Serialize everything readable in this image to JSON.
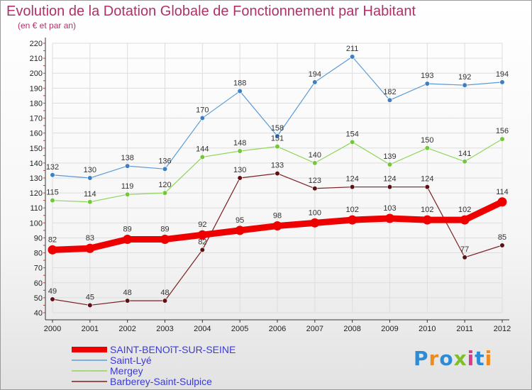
{
  "title": "Evolution de la Dotation Globale de Fonctionnement par Habitant",
  "subtitle": "(en € et par an)",
  "logo": {
    "text": "Proxiti",
    "colors": [
      "#2e8bd6",
      "#ef8a1c",
      "#2e8bd6",
      "#7cbf2a",
      "#d93a8c",
      "#2e8bd6",
      "#ef8a1c"
    ]
  },
  "chart_data": {
    "type": "line",
    "x": [
      "2000",
      "2001",
      "2002",
      "2003",
      "2004",
      "2005",
      "2006",
      "2007",
      "2008",
      "2009",
      "2010",
      "2011",
      "2012"
    ],
    "ylim": [
      40,
      220
    ],
    "yticks": [
      40,
      50,
      60,
      70,
      80,
      90,
      100,
      110,
      120,
      130,
      140,
      150,
      160,
      170,
      180,
      190,
      200,
      210,
      220
    ],
    "grid": true,
    "legend_position": "bottom-left",
    "series": [
      {
        "name": "SAINT-BENOîT-SUR-SEINE",
        "color": "#ee0000",
        "markerColor": "#ee0000",
        "width": 9,
        "values": [
          82,
          83,
          89,
          89,
          92,
          95,
          98,
          100,
          102,
          103,
          102,
          102,
          114
        ]
      },
      {
        "name": "Saint-Lyé",
        "color": "#5b9bd5",
        "markerColor": "#3d7fc1",
        "width": 1.2,
        "values": [
          132,
          130,
          138,
          136,
          170,
          188,
          158,
          194,
          211,
          182,
          193,
          192,
          194
        ]
      },
      {
        "name": "Mergey",
        "color": "#8fd65a",
        "markerColor": "#74c63a",
        "width": 1.2,
        "values": [
          115,
          114,
          119,
          120,
          144,
          148,
          151,
          140,
          154,
          139,
          150,
          141,
          156
        ]
      },
      {
        "name": "Barberey-Saint-Sulpice",
        "color": "#7a1f22",
        "markerColor": "#5e1114",
        "width": 1.2,
        "values": [
          49,
          45,
          48,
          48,
          82,
          130,
          133,
          123,
          124,
          124,
          124,
          77,
          85
        ]
      }
    ]
  }
}
